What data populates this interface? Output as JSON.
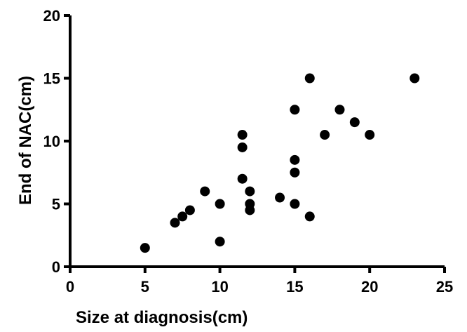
{
  "chart_data": {
    "type": "scatter",
    "title": "",
    "xlabel": "Size at diagnosis(cm)",
    "ylabel": "End of NAC(cm)",
    "xlim": [
      0,
      25
    ],
    "ylim": [
      0,
      20
    ],
    "x_ticks": [
      0,
      5,
      10,
      15,
      20,
      25
    ],
    "y_ticks": [
      0,
      5,
      10,
      15,
      20
    ],
    "grid": false,
    "legend": "none",
    "series": [
      {
        "points": [
          {
            "x": 5,
            "y": 1.5
          },
          {
            "x": 7,
            "y": 3.5
          },
          {
            "x": 7.5,
            "y": 4
          },
          {
            "x": 8,
            "y": 4.5
          },
          {
            "x": 9,
            "y": 6
          },
          {
            "x": 10,
            "y": 5
          },
          {
            "x": 10,
            "y": 2
          },
          {
            "x": 11.5,
            "y": 10.5
          },
          {
            "x": 11.5,
            "y": 9.5
          },
          {
            "x": 11.5,
            "y": 7
          },
          {
            "x": 12,
            "y": 6
          },
          {
            "x": 12,
            "y": 5
          },
          {
            "x": 12,
            "y": 4.5
          },
          {
            "x": 14,
            "y": 5.5
          },
          {
            "x": 15,
            "y": 12.5
          },
          {
            "x": 15,
            "y": 8.5
          },
          {
            "x": 15,
            "y": 7.5
          },
          {
            "x": 15,
            "y": 5
          },
          {
            "x": 16,
            "y": 15
          },
          {
            "x": 16,
            "y": 4
          },
          {
            "x": 17,
            "y": 10.5
          },
          {
            "x": 18,
            "y": 12.5
          },
          {
            "x": 19,
            "y": 11.5
          },
          {
            "x": 20,
            "y": 10.5
          },
          {
            "x": 23,
            "y": 15
          }
        ]
      }
    ],
    "colors": {
      "marker": "#000000",
      "axis": "#000000"
    }
  }
}
